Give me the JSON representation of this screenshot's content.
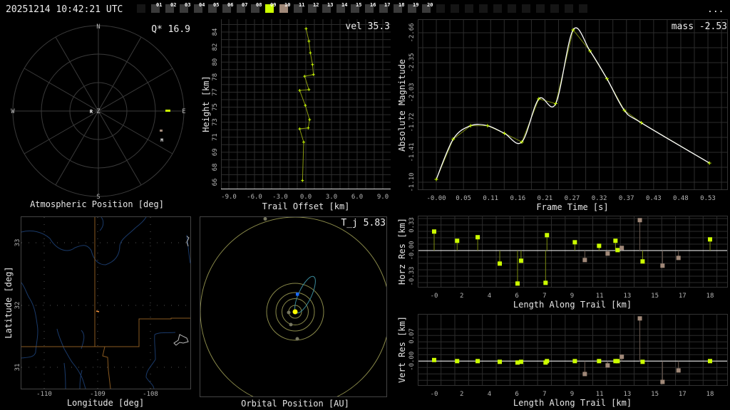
{
  "header": {
    "timestamp": "20251214 10:42:21 UTC",
    "menu_label": "...",
    "frames": [
      "01",
      "02",
      "03",
      "04",
      "05",
      "06",
      "07",
      "08",
      "09",
      "10",
      "11",
      "12",
      "13",
      "14",
      "15",
      "16",
      "17",
      "18",
      "19",
      "20"
    ],
    "selected_frame": "09",
    "secondary_frame": "10",
    "colors": {
      "selected": "#ccff00",
      "secondary": "#a08878",
      "frame": "#3a3a3a"
    }
  },
  "atmospheric": {
    "title": "Atmospheric Position [deg]",
    "stat": "Q* 16.9",
    "compass": {
      "n": "N",
      "s": "S",
      "e": "E",
      "w": "W",
      "zenith": "Z"
    },
    "markers": {
      "radiant": "R",
      "moon": "M"
    }
  },
  "height_plot": {
    "stat": "vel 35.3",
    "xlabel": "Trail Offset [km]",
    "ylabel": "Height [km]",
    "xticks": [
      "-9.0",
      "-6.0",
      "-3.0",
      "0.0",
      "3.0",
      "6.0",
      "9.0"
    ],
    "xtick_values": [
      -9,
      -6,
      -3,
      0,
      3,
      6,
      9
    ],
    "yticks": [
      "84",
      "82",
      "80",
      "78",
      "77",
      "75",
      "73",
      "71",
      "69",
      "68",
      "66"
    ],
    "points": [
      {
        "offset": 0.03,
        "height": 84.4
      },
      {
        "offset": 0.36,
        "height": 82.9
      },
      {
        "offset": 0.53,
        "height": 81.5
      },
      {
        "offset": 0.78,
        "height": 80.1
      },
      {
        "offset": 0.89,
        "height": 78.9
      },
      {
        "offset": -0.14,
        "height": 78.7
      },
      {
        "offset": 0.36,
        "height": 77.1
      },
      {
        "offset": -0.72,
        "height": 77.0
      },
      {
        "offset": -0.06,
        "height": 75.2
      },
      {
        "offset": 0.44,
        "height": 73.5
      },
      {
        "offset": 0.28,
        "height": 72.5
      },
      {
        "offset": -0.72,
        "height": 72.4
      },
      {
        "offset": -0.25,
        "height": 70.8
      },
      {
        "offset": -0.39,
        "height": 66.2
      }
    ]
  },
  "chart_data": [
    {
      "type": "line",
      "title": "mass -2.53",
      "xlabel": "Frame Time [s]",
      "ylabel": "Absolute Magnitude",
      "xticks": [
        "-0.00",
        "0.05",
        "0.11",
        "0.16",
        "0.21",
        "0.27",
        "0.32",
        "0.37",
        "0.43",
        "0.48",
        "0.53"
      ],
      "yticks": [
        "-2.66",
        "-2.35",
        "-2.03",
        "-1.72",
        "-1.41",
        "-1.10"
      ],
      "y_inverted": true,
      "grid": true,
      "x": [
        0,
        0.033,
        0.067,
        0.1,
        0.133,
        0.167,
        0.2,
        0.233,
        0.267,
        0.3,
        0.333,
        0.367,
        0.4,
        0.533
      ],
      "y": [
        -1.13,
        -1.55,
        -1.69,
        -1.69,
        -1.61,
        -1.52,
        -1.97,
        -1.92,
        -2.69,
        -2.47,
        -2.18,
        -1.85,
        -1.72,
        -1.3
      ],
      "colors": {
        "measured": "#ccff00",
        "fit": "#ffffff"
      }
    },
    {
      "type": "scatter",
      "xlabel": "Length Along Trail [km]",
      "ylabel": "Horz Res [km]",
      "xticks": [
        "-0",
        "2",
        "4",
        "6",
        "7",
        "9",
        "11",
        "13",
        "15",
        "17",
        "18"
      ],
      "yticks": [
        "0.33",
        "-0.00",
        "-0.33"
      ],
      "ytick_values": [
        0.33,
        0,
        -0.33
      ],
      "grid": true,
      "x": [
        0,
        1.5,
        2.84,
        4.28,
        5.44,
        5.67,
        7.27,
        7.36,
        9.18,
        9.83,
        10.76,
        11.32,
        11.83,
        11.97,
        12.24,
        13.42,
        13.6,
        14.9,
        15.94,
        18.0
      ],
      "y": [
        0.245,
        0.126,
        0.172,
        -0.168,
        -0.425,
        -0.131,
        -0.416,
        0.199,
        0.107,
        -0.122,
        0.061,
        -0.039,
        0.126,
        0.006,
        0.034,
        0.392,
        -0.14,
        -0.195,
        -0.095,
        0.144
      ],
      "station": [
        "a",
        "a",
        "a",
        "a",
        "a",
        "a",
        "a",
        "a",
        "a",
        "b",
        "a",
        "b",
        "a",
        "a",
        "b",
        "b",
        "a",
        "b",
        "b",
        "a"
      ],
      "colors": {
        "a": "#ccff00",
        "b": "#a08878"
      }
    },
    {
      "type": "scatter",
      "xlabel": "Length Along Trail [km]",
      "ylabel": "Vert Res [km]",
      "xticks": [
        "-0",
        "2",
        "4",
        "6",
        "7",
        "9",
        "11",
        "13",
        "15",
        "17",
        "18"
      ],
      "yticks": [
        "0.07",
        "-0.00"
      ],
      "ytick_values": [
        0.07,
        0
      ],
      "grid": true,
      "x": [
        0,
        1.5,
        2.84,
        4.28,
        5.44,
        5.67,
        7.27,
        7.36,
        9.18,
        9.83,
        10.76,
        11.32,
        11.83,
        11.97,
        12.24,
        13.42,
        13.6,
        14.9,
        15.94,
        18.0
      ],
      "y": [
        0.003,
        0,
        0,
        -0.002,
        -0.004,
        -0.002,
        -0.004,
        0,
        0,
        -0.036,
        0,
        -0.012,
        0,
        0,
        0.012,
        0.119,
        -0.002,
        -0.058,
        -0.026,
        0
      ],
      "station": [
        "a",
        "a",
        "a",
        "a",
        "a",
        "a",
        "a",
        "a",
        "a",
        "b",
        "a",
        "b",
        "a",
        "a",
        "b",
        "b",
        "a",
        "b",
        "b",
        "a"
      ],
      "colors": {
        "a": "#ccff00",
        "b": "#a08878"
      }
    }
  ],
  "map": {
    "xlabel": "Longitude [deg]",
    "ylabel": "Latitude [deg]",
    "xticks": [
      "-110",
      "-109",
      "-108"
    ],
    "yticks": [
      "33",
      "32",
      "31"
    ]
  },
  "orbit": {
    "title": "Orbital Position [AU]",
    "stat": "T_j 5.83"
  }
}
